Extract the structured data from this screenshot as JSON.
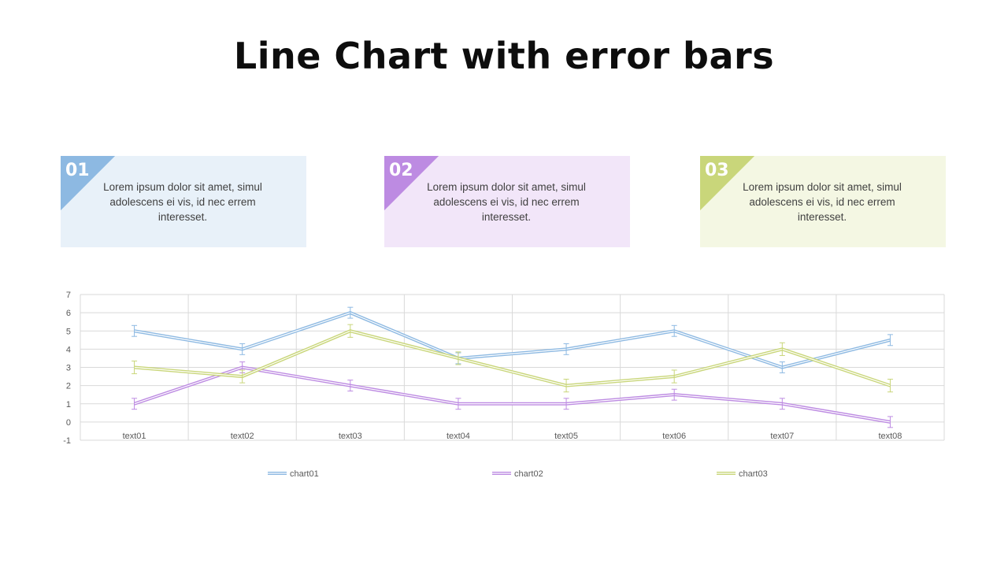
{
  "title": "Line Chart with error bars",
  "cards": [
    {
      "number": "01",
      "text": "Lorem ipsum dolor sit amet, simul adolescens ei vis, id nec errem interesset.",
      "accent": "#8DB9E2",
      "background": "#E8F1F9"
    },
    {
      "number": "02",
      "text": "Lorem ipsum dolor sit amet, simul adolescens ei vis, id nec errem interesset.",
      "accent": "#BD8BE2",
      "background": "#F2E6F9"
    },
    {
      "number": "03",
      "text": "Lorem ipsum dolor sit amet, simul adolescens ei vis, id nec errem interesset.",
      "accent": "#C9D67A",
      "background": "#F4F7E3"
    }
  ],
  "chart_data": {
    "type": "line",
    "title": "",
    "xlabel": "",
    "ylabel": "",
    "categories": [
      "text01",
      "text02",
      "text03",
      "text04",
      "text05",
      "text06",
      "text07",
      "text08"
    ],
    "series": [
      {
        "name": "chart01",
        "color": "#8DB9E2",
        "values": [
          5,
          4,
          6,
          3.5,
          4,
          5,
          3,
          4.5
        ],
        "error": 0.3
      },
      {
        "name": "chart02",
        "color": "#BD8BE2",
        "values": [
          1,
          3,
          2,
          1,
          1,
          1.5,
          1,
          0
        ],
        "error": 0.3
      },
      {
        "name": "chart03",
        "color": "#C9D67A",
        "values": [
          3,
          2.5,
          5,
          3.5,
          2,
          2.5,
          4,
          2
        ],
        "error": 0.35
      }
    ],
    "ylim": [
      -1,
      7
    ],
    "yticks": [
      -1,
      0,
      1,
      2,
      3,
      4,
      5,
      6,
      7
    ],
    "grid": true,
    "error_bars": true,
    "legend_position": "bottom"
  }
}
